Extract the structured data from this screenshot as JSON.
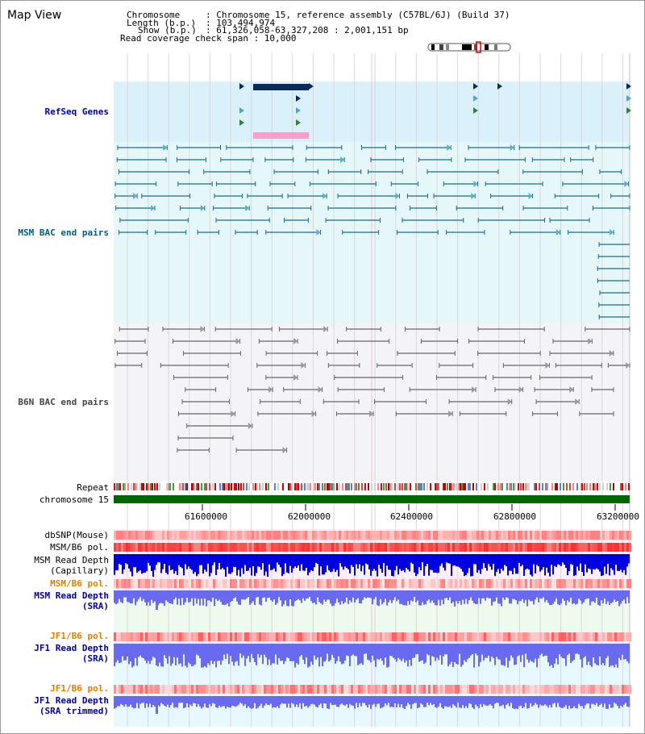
{
  "header": {
    "title": "Map View",
    "chromosome_key": "Chromosome",
    "chromosome_val": ": Chromosome 15, reference assembly (C57BL/6J) (Build 37)",
    "length_key": "Length (b.p.)",
    "length_val": ": 103,494,974",
    "show_key": "Show (b.p.)",
    "show_val": ": 61,326,058-63,327,208 : 2,001,151 bp",
    "read_coverage": "Read coverage check span : 10,000"
  },
  "tracks": {
    "refseq": "RefSeq Genes",
    "msm_bac": "MSM BAC end pairs",
    "b6n_bac": "B6N BAC end pairs",
    "repeat": "Repeat",
    "chromosome": "chromosome 15",
    "dbsnp": "dbSNP(Mouse)",
    "msm_b6_pol": "MSM/B6 pol.",
    "msm_read_depth": "MSM Read Depth",
    "capillary": "(Capillary)",
    "msm_b6_pol_2": "MSM/B6 pol.",
    "msm_read_depth_2": "MSM Read Depth",
    "sra": "(SRA)",
    "jf1_b6_pol": "JF1/B6 pol.",
    "jf1_read_depth": "JF1 Read Depth",
    "sra_2": "(SRA)",
    "jf1_b6_pol_2": "JF1/B6 pol.",
    "jf1_read_depth_2": "JF1 Read Depth",
    "sra_trimmed": "(SRA trimmed)"
  },
  "axis": {
    "ticks": [
      "61600000",
      "62000000",
      "62400000",
      "62800000",
      "63200000"
    ]
  },
  "colors": {
    "refseq_bg": "#daf0fa",
    "msm_bg": "#e6f7fa",
    "b6n_bg": "#f4f4f8",
    "gene_dark": "#0a2a5a",
    "gene_pink": "#f5a0c8",
    "msm_line": "#1a6b8a",
    "b6n_line": "#666666",
    "chrom_green": "#006600",
    "depth_blue": "#0000e0",
    "depth_light": "#6a6af0"
  }
}
